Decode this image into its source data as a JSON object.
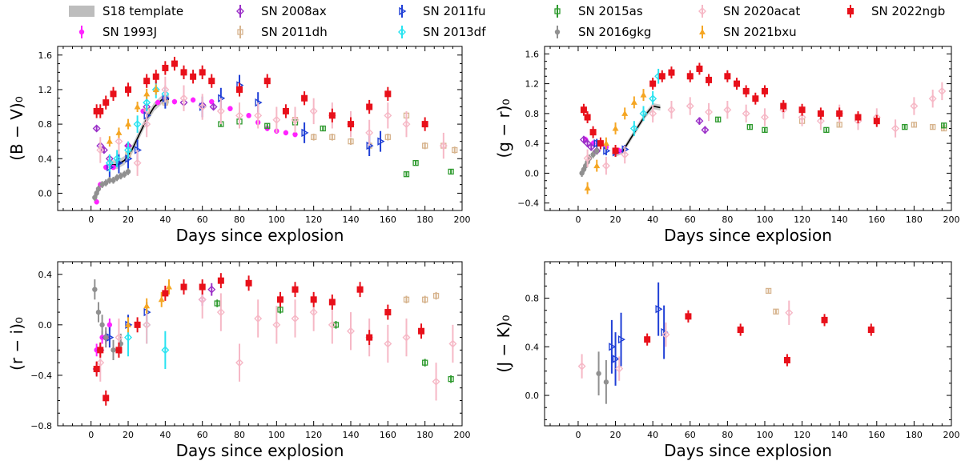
{
  "figure": {
    "description_free": true
  },
  "legend": {
    "entries": [
      {
        "label": "S18 template",
        "color": "#bdbdbd",
        "marker": "band"
      },
      {
        "label": "SN 2008ax",
        "color": "#9b30c8",
        "marker": "diamond"
      },
      {
        "label": "SN 2011fu",
        "color": "#1f3fd6",
        "marker": "tri-right"
      },
      {
        "label": "SN 2015as",
        "color": "#2e9a2e",
        "marker": "square-open"
      },
      {
        "label": "SN 2020acat",
        "color": "#f6b8c6",
        "marker": "diamond"
      },
      {
        "label": "SN 2022ngb",
        "color": "#e8101a",
        "marker": "square"
      },
      {
        "label": "SN 1993J",
        "color": "#ff22ff",
        "marker": "circle"
      },
      {
        "label": "SN 2011dh",
        "color": "#d7b48e",
        "marker": "square-open"
      },
      {
        "label": "SN 2013df",
        "color": "#29e3f0",
        "marker": "diamond"
      },
      {
        "label": "SN 2016gkg",
        "color": "#909090",
        "marker": "circle"
      },
      {
        "label": "SN 2021bxu",
        "color": "#f5a623",
        "marker": "tri-up"
      }
    ]
  },
  "chart_data": [
    {
      "type": "scatter",
      "id": "b_minus_v",
      "ylabel": "(B − V)₀",
      "xlabel": "Days since explosion",
      "xlim": [
        -18,
        200
      ],
      "ylim": [
        -0.2,
        1.7
      ],
      "xticks": [
        0,
        20,
        40,
        60,
        80,
        100,
        120,
        140,
        160,
        180,
        200
      ],
      "yticks": [
        0.0,
        0.4,
        0.8,
        1.2,
        1.6
      ],
      "ytick_labels": [
        "0.0",
        "0.4",
        "0.8",
        "1.2",
        "1.6"
      ],
      "template": {
        "x": [
          10,
          14,
          18,
          22,
          26,
          30,
          34,
          38,
          42
        ],
        "y": [
          0.33,
          0.33,
          0.38,
          0.5,
          0.68,
          0.86,
          1.0,
          1.08,
          1.09
        ],
        "width": 0.05
      },
      "series": [
        {
          "name": "SN 1993J",
          "x": [
            3,
            5,
            8,
            12,
            20,
            28,
            36,
            45,
            55,
            65,
            75,
            85,
            90,
            95,
            100,
            105,
            110
          ],
          "y": [
            -0.1,
            0.1,
            0.3,
            0.3,
            0.55,
            0.95,
            1.05,
            1.06,
            1.08,
            1.06,
            0.98,
            0.9,
            0.82,
            0.75,
            0.72,
            0.7,
            0.68
          ],
          "yerr": 0.03
        },
        {
          "name": "SN 2008ax",
          "x": [
            3,
            5,
            7,
            10,
            20,
            30,
            40,
            50,
            60,
            66
          ],
          "y": [
            0.75,
            0.55,
            0.5,
            0.4,
            0.55,
            1.0,
            1.1,
            1.05,
            1.02,
            1.0
          ],
          "yerr": 0.03
        },
        {
          "name": "SN 2011dh",
          "x": [
            20,
            30,
            40,
            110,
            120,
            130,
            140,
            150,
            160,
            170,
            180,
            190,
            196
          ],
          "y": [
            0.45,
            0.95,
            1.05,
            0.85,
            0.65,
            0.65,
            0.6,
            0.55,
            0.65,
            0.9,
            0.55,
            0.55,
            0.5
          ],
          "yerr": 0.04
        },
        {
          "name": "SN 2011fu",
          "x": [
            10,
            15,
            20,
            25,
            30,
            40,
            60,
            70,
            80,
            90,
            115,
            150,
            156
          ],
          "y": [
            0.3,
            0.35,
            0.4,
            0.5,
            0.9,
            1.1,
            1.0,
            1.1,
            1.25,
            1.05,
            0.7,
            0.55,
            0.6
          ],
          "yerr": 0.12
        },
        {
          "name": "SN 2013df",
          "x": [
            10,
            14,
            20,
            25,
            30,
            35,
            40
          ],
          "y": [
            0.35,
            0.4,
            0.5,
            0.8,
            1.05,
            1.2,
            1.15
          ],
          "yerr": 0.1
        },
        {
          "name": "SN 2015as",
          "x": [
            70,
            80,
            95,
            110,
            125,
            170,
            175,
            194
          ],
          "y": [
            0.8,
            0.83,
            0.78,
            0.82,
            0.75,
            0.22,
            0.35,
            0.25
          ],
          "yerr": 0.03
        },
        {
          "name": "SN 2016gkg",
          "x": [
            2,
            3,
            4,
            6,
            8,
            10,
            12,
            14,
            16,
            18,
            20
          ],
          "y": [
            -0.05,
            0.0,
            0.05,
            0.1,
            0.12,
            0.15,
            0.15,
            0.18,
            0.2,
            0.22,
            0.25
          ],
          "yerr": 0.04
        },
        {
          "name": "SN 2020acat",
          "x": [
            5,
            15,
            25,
            30,
            40,
            50,
            60,
            70,
            80,
            90,
            100,
            110,
            120,
            130,
            140,
            150,
            160,
            170,
            190
          ],
          "y": [
            0.5,
            0.6,
            0.35,
            0.8,
            1.2,
            1.1,
            1.0,
            0.95,
            0.9,
            0.9,
            0.85,
            0.85,
            0.95,
            0.9,
            0.8,
            0.7,
            0.9,
            0.8,
            0.55
          ],
          "yerr": 0.15
        },
        {
          "name": "SN 2021bxu",
          "x": [
            10,
            15,
            20,
            25,
            30,
            35
          ],
          "y": [
            0.6,
            0.7,
            0.8,
            1.0,
            1.15,
            1.2
          ],
          "yerr": 0.06
        },
        {
          "name": "SN 2022ngb",
          "x": [
            3,
            5,
            8,
            12,
            20,
            30,
            35,
            40,
            45,
            50,
            55,
            60,
            65,
            80,
            95,
            105,
            115,
            130,
            140,
            150,
            160,
            180
          ],
          "y": [
            0.95,
            0.95,
            1.05,
            1.15,
            1.2,
            1.3,
            1.35,
            1.45,
            1.5,
            1.4,
            1.35,
            1.4,
            1.3,
            1.2,
            1.3,
            0.95,
            1.1,
            0.9,
            0.8,
            1.0,
            1.15,
            0.8
          ],
          "yerr": 0.08
        }
      ]
    },
    {
      "type": "scatter",
      "id": "g_minus_r",
      "ylabel": "(g − r)₀",
      "xlabel": "Days since explosion",
      "xlim": [
        -18,
        200
      ],
      "ylim": [
        -0.5,
        1.7
      ],
      "xticks": [
        0,
        20,
        40,
        60,
        80,
        100,
        120,
        140,
        160,
        180,
        200
      ],
      "yticks": [
        -0.4,
        0.0,
        0.4,
        0.8,
        1.2,
        1.6
      ],
      "ytick_labels": [
        "−0.4",
        "0.0",
        "0.4",
        "0.8",
        "1.2",
        "1.6"
      ],
      "template": {
        "x": [
          20,
          24,
          28,
          32,
          36,
          40,
          44
        ],
        "y": [
          0.26,
          0.3,
          0.46,
          0.62,
          0.78,
          0.9,
          0.88
        ],
        "width": 0.04
      },
      "series": [
        {
          "name": "SN 1993J",
          "x": [
            4,
            8,
            15,
            22
          ],
          "y": [
            0.45,
            0.4,
            0.35,
            0.3
          ],
          "yerr": 0.04
        },
        {
          "name": "SN 2008ax",
          "x": [
            3,
            5,
            7,
            10,
            65,
            68
          ],
          "y": [
            0.45,
            0.4,
            0.35,
            0.3,
            0.7,
            0.58
          ],
          "yerr": 0.05
        },
        {
          "name": "SN 2011dh",
          "x": [
            120,
            140,
            160,
            180,
            190,
            196
          ],
          "y": [
            0.7,
            0.65,
            0.7,
            0.65,
            0.62,
            0.6
          ],
          "yerr": 0.03
        },
        {
          "name": "SN 2011fu",
          "x": [
            10,
            15,
            20,
            25
          ],
          "y": [
            0.4,
            0.3,
            0.28,
            0.32
          ],
          "yerr": 0.06
        },
        {
          "name": "SN 2013df",
          "x": [
            30,
            35,
            40,
            43
          ],
          "y": [
            0.6,
            0.8,
            1.0,
            1.3
          ],
          "yerr": 0.1
        },
        {
          "name": "SN 2015as",
          "x": [
            75,
            92,
            100,
            133,
            175,
            196
          ],
          "y": [
            0.72,
            0.62,
            0.58,
            0.58,
            0.62,
            0.64
          ],
          "yerr": 0.03
        },
        {
          "name": "SN 2016gkg",
          "x": [
            2,
            3,
            4,
            5,
            6,
            8,
            10
          ],
          "y": [
            0.0,
            0.05,
            0.1,
            0.15,
            0.2,
            0.25,
            0.3
          ],
          "yerr": 0.05
        },
        {
          "name": "SN 2020acat",
          "x": [
            5,
            15,
            25,
            40,
            50,
            60,
            70,
            80,
            90,
            100,
            110,
            120,
            130,
            140,
            150,
            160,
            170,
            180,
            190,
            195
          ],
          "y": [
            0.2,
            0.1,
            0.25,
            0.8,
            0.85,
            0.9,
            0.82,
            0.85,
            0.8,
            0.75,
            0.85,
            0.75,
            0.7,
            0.8,
            0.7,
            0.75,
            0.6,
            0.9,
            1.0,
            1.1
          ],
          "yerr": 0.12
        },
        {
          "name": "SN 2021bxu",
          "x": [
            5,
            10,
            15,
            20,
            25,
            30,
            35
          ],
          "y": [
            -0.2,
            0.1,
            0.4,
            0.6,
            0.8,
            0.95,
            1.05
          ],
          "yerr": 0.08
        },
        {
          "name": "SN 2022ngb",
          "x": [
            3,
            5,
            8,
            12,
            20,
            40,
            45,
            50,
            60,
            65,
            70,
            80,
            85,
            90,
            95,
            100,
            110,
            120,
            130,
            140,
            150,
            160
          ],
          "y": [
            0.85,
            0.75,
            0.55,
            0.4,
            0.3,
            1.2,
            1.3,
            1.35,
            1.3,
            1.4,
            1.25,
            1.3,
            1.2,
            1.1,
            1.0,
            1.1,
            0.9,
            0.85,
            0.8,
            0.8,
            0.75,
            0.7
          ],
          "yerr": 0.08
        }
      ]
    },
    {
      "type": "scatter",
      "id": "r_minus_i",
      "ylabel": "(r − i)₀",
      "xlabel": "Days since explosion",
      "xlim": [
        -18,
        200
      ],
      "ylim": [
        -0.8,
        0.5
      ],
      "xticks": [
        0,
        20,
        40,
        60,
        80,
        100,
        120,
        140,
        160,
        180,
        200
      ],
      "yticks": [
        -0.8,
        -0.4,
        0.0,
        0.4
      ],
      "ytick_labels": [
        "−0.8",
        "−0.4",
        "0.0",
        "0.4"
      ],
      "series": [
        {
          "name": "SN 1993J",
          "x": [
            3,
            6,
            10
          ],
          "y": [
            -0.2,
            -0.1,
            0.0
          ],
          "yerr": 0.05
        },
        {
          "name": "SN 2008ax",
          "x": [
            3,
            5,
            8,
            60,
            65
          ],
          "y": [
            -0.35,
            -0.2,
            -0.1,
            0.2,
            0.28
          ],
          "yerr": 0.05
        },
        {
          "name": "SN 2011dh",
          "x": [
            170,
            180,
            186
          ],
          "y": [
            0.2,
            0.2,
            0.23
          ],
          "yerr": 0.03
        },
        {
          "name": "SN 2011fu",
          "x": [
            10,
            20,
            30
          ],
          "y": [
            -0.1,
            0.0,
            0.1
          ],
          "yerr": 0.08
        },
        {
          "name": "SN 2013df",
          "x": [
            20,
            30,
            40
          ],
          "y": [
            -0.1,
            0.0,
            -0.2
          ],
          "yerr": 0.15
        },
        {
          "name": "SN 2015as",
          "x": [
            68,
            102,
            132,
            180,
            194
          ],
          "y": [
            0.17,
            0.12,
            0.0,
            -0.3,
            -0.43
          ],
          "yerr": 0.03
        },
        {
          "name": "SN 2016gkg",
          "x": [
            2,
            4,
            6,
            8,
            12,
            16
          ],
          "y": [
            0.28,
            0.1,
            0.0,
            -0.1,
            -0.2,
            -0.15
          ],
          "yerr": 0.08
        },
        {
          "name": "SN 2020acat",
          "x": [
            5,
            15,
            30,
            60,
            70,
            80,
            90,
            100,
            110,
            120,
            130,
            140,
            150,
            160,
            170,
            186,
            195
          ],
          "y": [
            -0.3,
            -0.1,
            0.0,
            0.2,
            0.1,
            -0.3,
            0.05,
            0.0,
            0.05,
            0.1,
            0.0,
            -0.05,
            -0.1,
            -0.15,
            -0.1,
            -0.45,
            -0.15
          ],
          "yerr": 0.15
        },
        {
          "name": "SN 2021bxu",
          "x": [
            20,
            30,
            38,
            42
          ],
          "y": [
            0.0,
            0.15,
            0.2,
            0.3
          ],
          "yerr": 0.06
        },
        {
          "name": "SN 2022ngb",
          "x": [
            3,
            5,
            8,
            15,
            25,
            40,
            50,
            60,
            70,
            85,
            102,
            110,
            120,
            130,
            145,
            150,
            160,
            178
          ],
          "y": [
            -0.35,
            -0.2,
            -0.58,
            -0.2,
            0.0,
            0.25,
            0.3,
            0.3,
            0.35,
            0.33,
            0.2,
            0.28,
            0.2,
            0.18,
            0.28,
            -0.1,
            0.1,
            -0.05
          ],
          "yerr": 0.06
        }
      ]
    },
    {
      "type": "scatter",
      "id": "j_minus_k",
      "ylabel": "(J − K)₀",
      "xlabel": "Days since explosion",
      "xlim": [
        -18,
        200
      ],
      "ylim": [
        -0.25,
        1.1
      ],
      "xticks": [
        0,
        20,
        40,
        60,
        80,
        100,
        120,
        140,
        160,
        180,
        200
      ],
      "yticks": [
        0.0,
        0.4,
        0.8
      ],
      "ytick_labels": [
        "0.0",
        "0.4",
        "0.8"
      ],
      "series": [
        {
          "name": "SN 2011dh",
          "x": [
            102,
            106
          ],
          "y": [
            0.86,
            0.69
          ],
          "yerr": 0.02
        },
        {
          "name": "SN 2011fu",
          "x": [
            18,
            20,
            23,
            43,
            46
          ],
          "y": [
            0.4,
            0.3,
            0.46,
            0.71,
            0.52
          ],
          "yerr": 0.22
        },
        {
          "name": "SN 2016gkg",
          "x": [
            11,
            15
          ],
          "y": [
            0.18,
            0.11
          ],
          "yerr": 0.18
        },
        {
          "name": "SN 2020acat",
          "x": [
            2,
            22,
            47,
            113
          ],
          "y": [
            0.24,
            0.22,
            0.5,
            0.68
          ],
          "yerr": 0.1
        },
        {
          "name": "SN 2022ngb",
          "x": [
            37,
            59,
            87,
            112,
            132,
            157
          ],
          "y": [
            0.46,
            0.65,
            0.54,
            0.29,
            0.62,
            0.54
          ],
          "yerr": 0.05
        }
      ]
    }
  ]
}
